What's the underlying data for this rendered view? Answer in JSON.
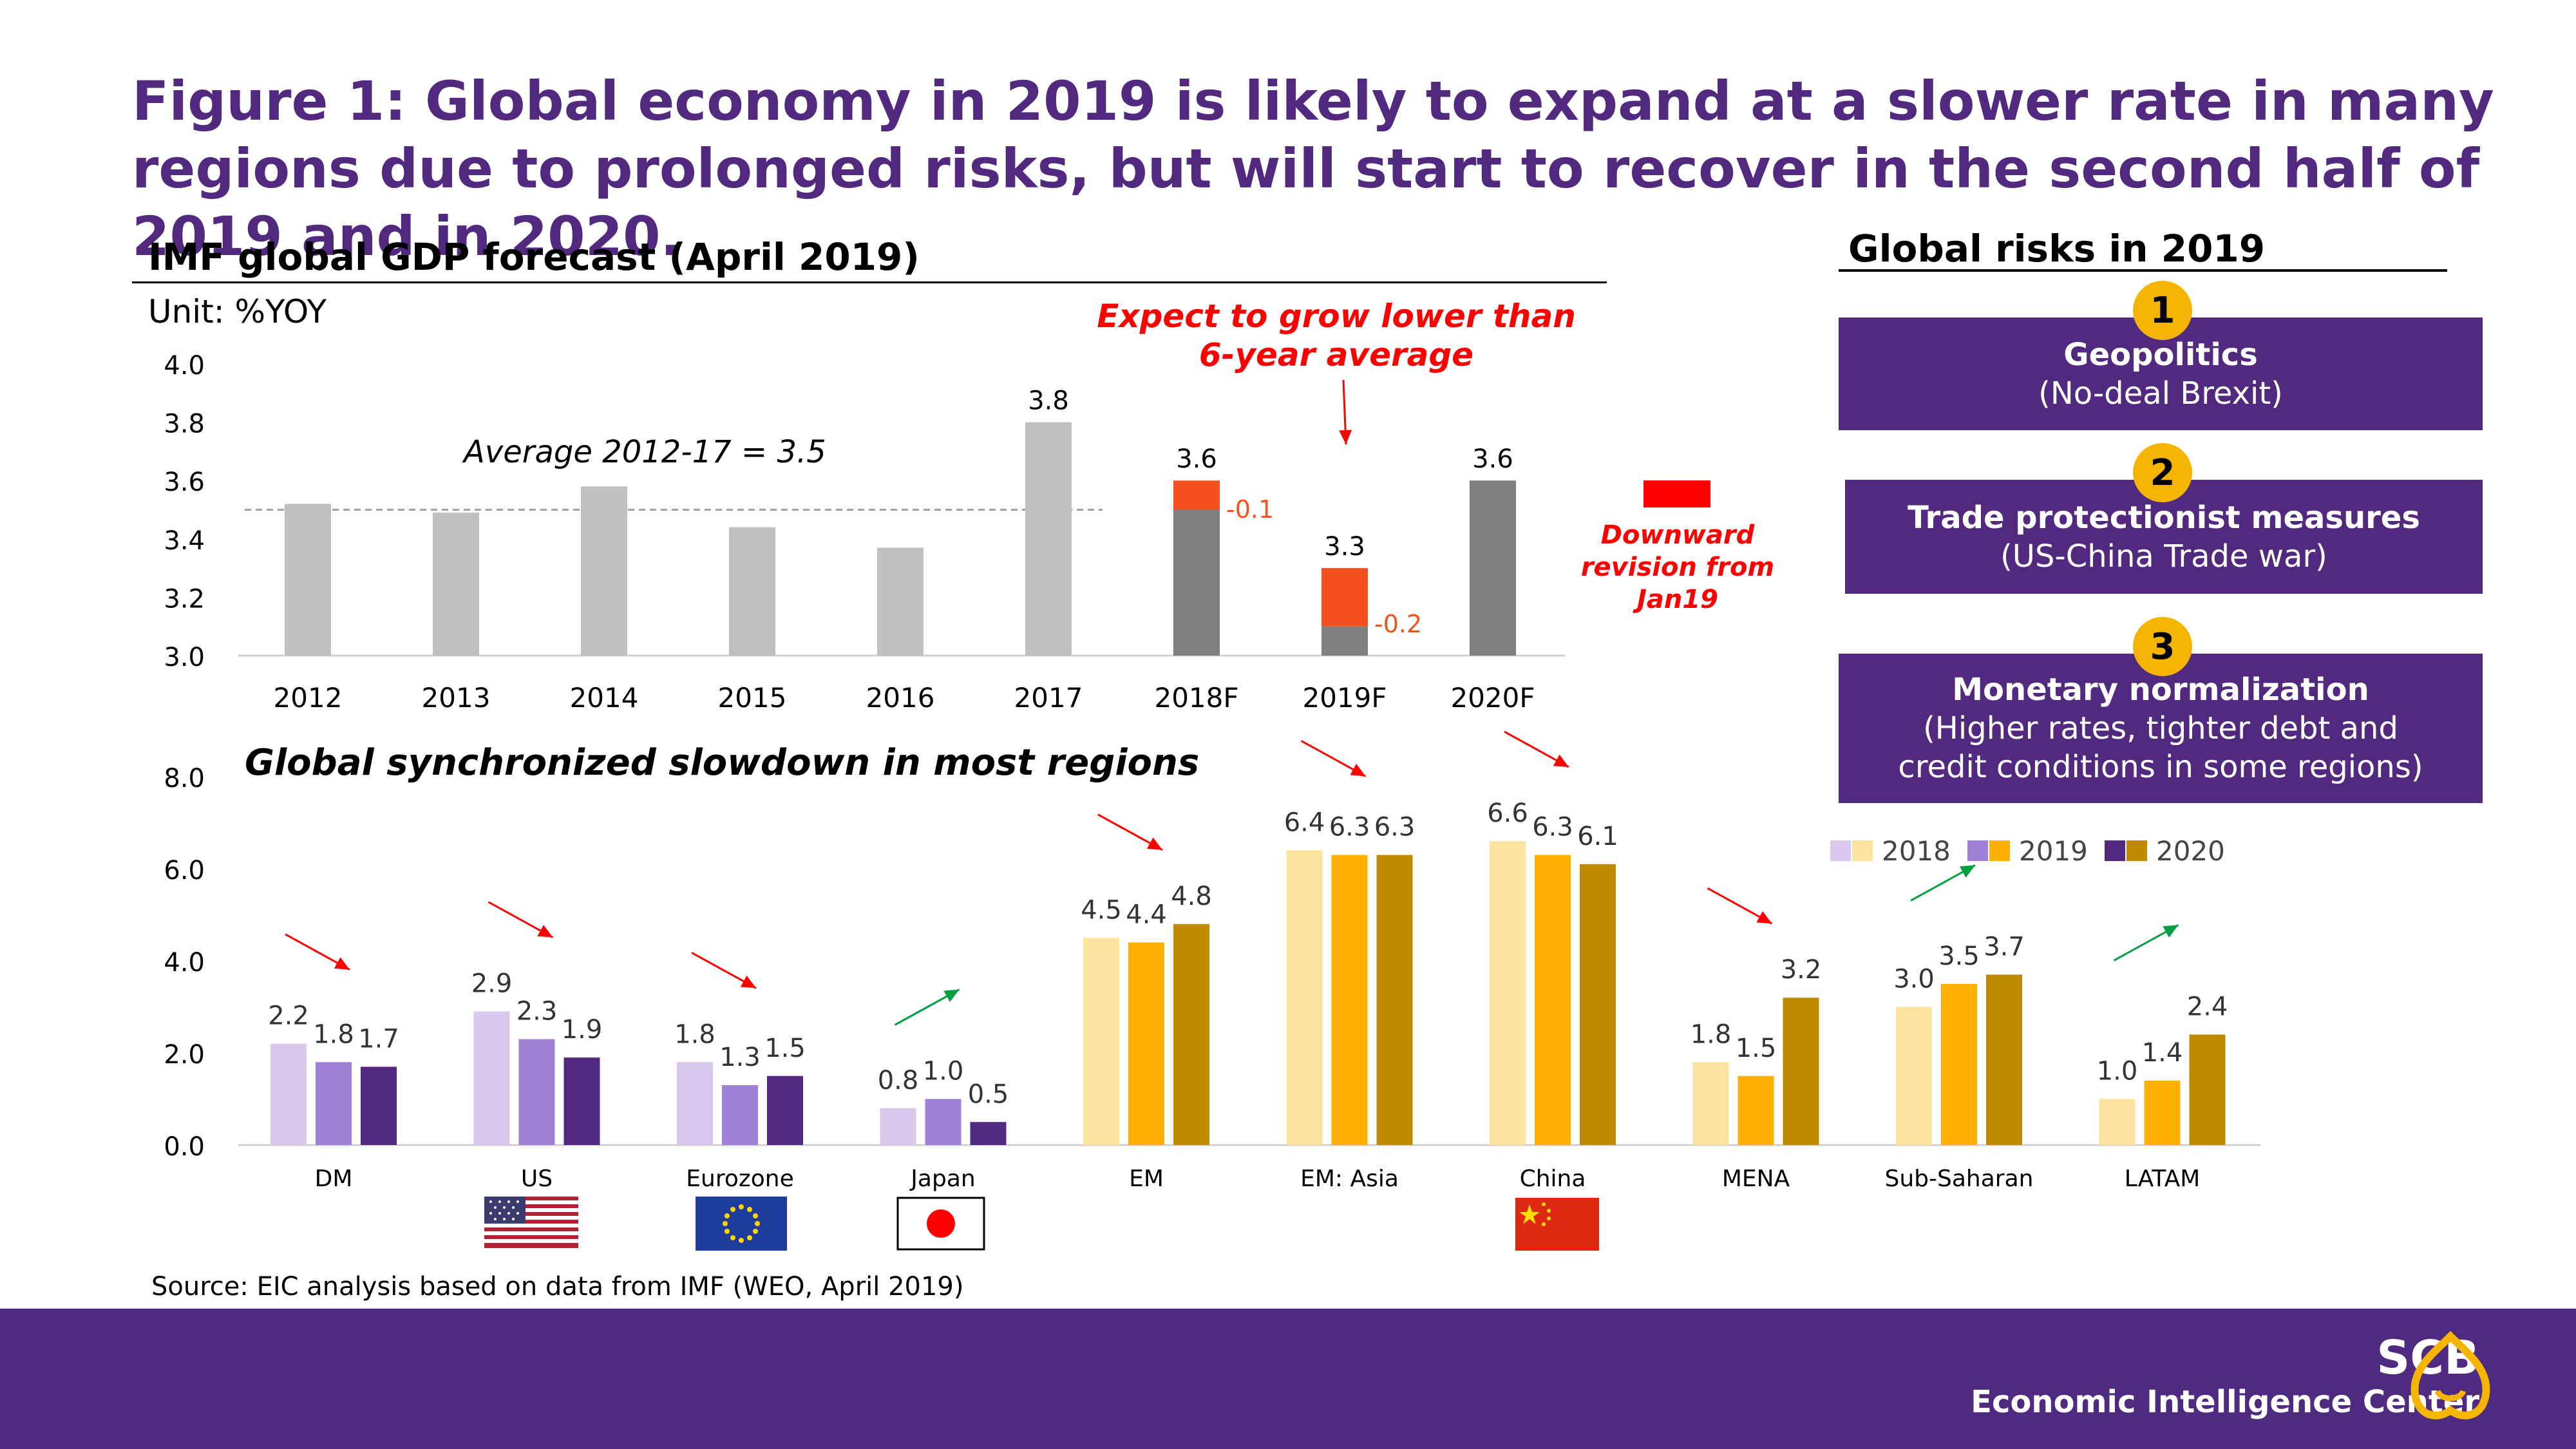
{
  "title": "Figure 1: Global economy in 2019 is likely to expand at a slower rate in many regions due to prolonged risks, but will start to recover in the second half of 2019 and in 2020.",
  "source": "Source: EIC analysis based on data from IMF (WEO, April 2019)",
  "brand": {
    "name": "SCB",
    "subtitle": "Economic Intelligence Center"
  },
  "risks": {
    "title": "Global risks in 2019",
    "items": [
      {
        "num": "1",
        "heading": "Geopolitics",
        "detail": "(No-deal Brexit)"
      },
      {
        "num": "2",
        "heading": "Trade protectionist measures",
        "detail": "(US-China Trade war)"
      },
      {
        "num": "3",
        "heading": "Monetary normalization",
        "detail": "(Higher rates, tighter debt and credit conditions in some regions)"
      }
    ]
  },
  "colors": {
    "purple": "#51297f",
    "accent": "#f4b400",
    "revision": "#f4511e",
    "red": "#ff0000"
  },
  "chart_data": [
    {
      "type": "bar",
      "title": "IMF global GDP forecast (April 2019)",
      "unit": "Unit: %YOY",
      "categories": [
        "2012",
        "2013",
        "2014",
        "2015",
        "2016",
        "2017",
        "2018F",
        "2019F",
        "2020F"
      ],
      "values": [
        3.52,
        3.49,
        3.58,
        3.44,
        3.37,
        3.8,
        3.6,
        3.3,
        3.6
      ],
      "value_labels": [
        "",
        "",
        "",
        "",
        "",
        "3.8",
        "3.6",
        "3.3",
        "3.6"
      ],
      "revisions": [
        0,
        0,
        0,
        0,
        0,
        0,
        -0.1,
        -0.2,
        0
      ],
      "revision_labels": [
        "",
        "",
        "",
        "",
        "",
        "",
        "-0.1",
        "-0.2",
        ""
      ],
      "ylim": [
        3.0,
        4.0
      ],
      "yticks": [
        "3.0",
        "3.2",
        "3.4",
        "3.6",
        "3.8",
        "4.0"
      ],
      "average": 3.5,
      "average_label": "Average 2012-17 = 3.5",
      "annotation": "Expect to grow lower than 6-year average",
      "legend": "Downward revision from Jan19"
    },
    {
      "type": "bar",
      "title": "Global synchronized slowdown in most regions",
      "categories": [
        "DM",
        "US",
        "Eurozone",
        "Japan",
        "EM",
        "EM: Asia",
        "China",
        "MENA",
        "Sub-Saharan",
        "LATAM"
      ],
      "series": [
        {
          "name": "2018",
          "values": [
            2.2,
            2.9,
            1.8,
            0.8,
            4.5,
            6.4,
            6.6,
            1.8,
            3.0,
            1.0
          ]
        },
        {
          "name": "2019",
          "values": [
            1.8,
            2.3,
            1.3,
            1.0,
            4.4,
            6.3,
            6.3,
            1.5,
            3.5,
            1.4
          ]
        },
        {
          "name": "2020",
          "values": [
            1.7,
            1.9,
            1.5,
            0.5,
            4.8,
            6.3,
            6.1,
            3.2,
            3.7,
            2.4
          ]
        }
      ],
      "value_labels": [
        [
          "2.2",
          "2.9",
          "1.8",
          "0.8",
          "4.5",
          "6.4",
          "6.6",
          "1.8",
          "3.0",
          "1.0"
        ],
        [
          "1.8",
          "2.3",
          "1.3",
          "1.0",
          "4.4",
          "6.3",
          "6.3",
          "1.5",
          "3.5",
          "1.4"
        ],
        [
          "1.7",
          "1.9",
          "1.5",
          "0.5",
          "4.8",
          "6.3",
          "6.1",
          "3.2",
          "3.7",
          "2.4"
        ]
      ],
      "ylim": [
        0,
        8
      ],
      "yticks": [
        "0.0",
        "2.0",
        "4.0",
        "6.0",
        "8.0"
      ],
      "trend": [
        "down",
        "down",
        "down",
        "up",
        "down",
        "down",
        "down",
        "down",
        "up",
        "up"
      ],
      "legend_position": "right"
    }
  ]
}
